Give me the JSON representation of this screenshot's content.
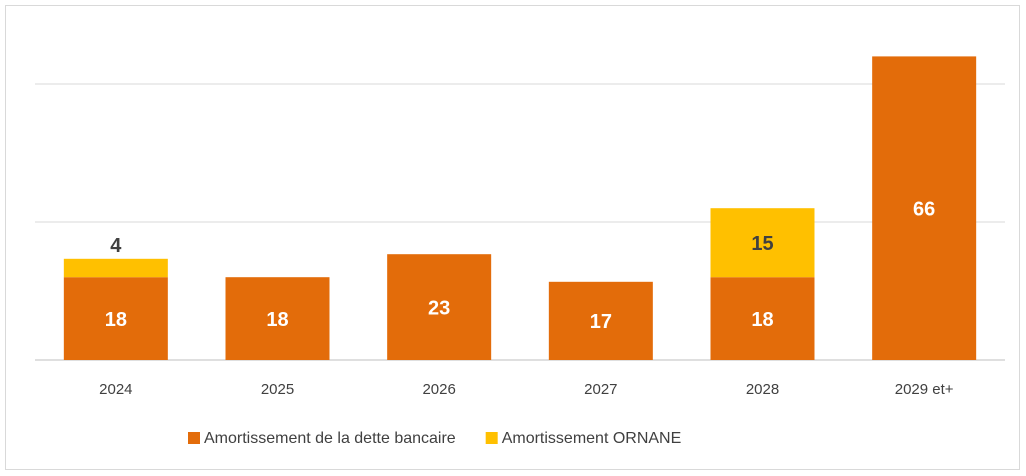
{
  "chart_data": {
    "type": "stacked_bar",
    "categories": [
      "2024",
      "2025",
      "2026",
      "2027",
      "2028",
      "2029 et+"
    ],
    "series": [
      {
        "name": "Amortissement de la dette bancaire",
        "color": "#e36c0a",
        "values": [
          18,
          18,
          23,
          17,
          18,
          66
        ]
      },
      {
        "name": "Amortissement ORNANE",
        "color": "#ffc000",
        "values": [
          4,
          null,
          null,
          null,
          15,
          null
        ]
      }
    ],
    "ylim": [
      0,
      75
    ],
    "yticks": [
      0,
      30,
      60
    ],
    "grid": true,
    "legend": "bottom"
  }
}
